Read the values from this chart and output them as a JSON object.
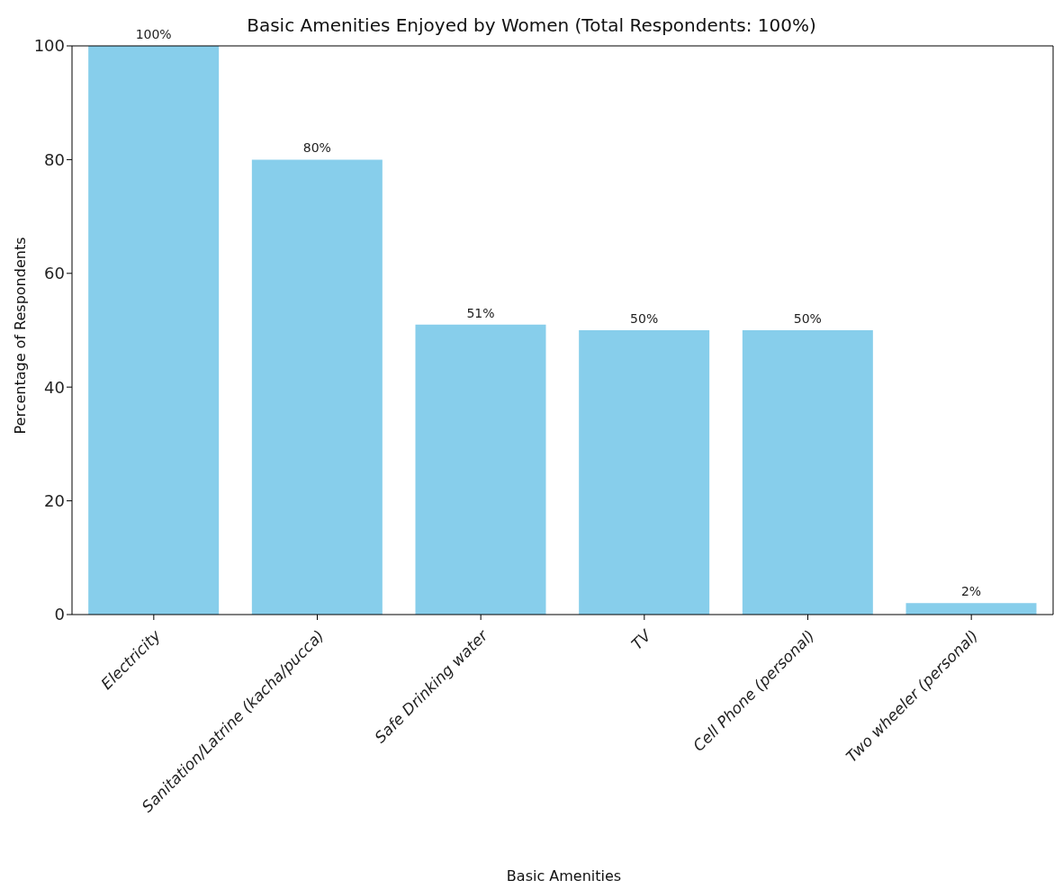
{
  "chart_data": {
    "type": "bar",
    "title": "Basic Amenities Enjoyed by Women (Total Respondents: 100%)",
    "xlabel": "Basic Amenities",
    "ylabel": "Percentage of Respondents",
    "categories": [
      "Electricity",
      "Sanitation/Latrine (kacha/pucca)",
      "Safe Drinking water",
      "TV",
      "Cell Phone (personal)",
      "Two wheeler (personal)"
    ],
    "values": [
      100,
      80,
      51,
      50,
      50,
      2
    ],
    "value_labels": [
      "100%",
      "80%",
      "51%",
      "50%",
      "50%",
      "2%"
    ],
    "color": "#87ceeb",
    "ylim": [
      0,
      100
    ],
    "yticks": [
      0,
      20,
      40,
      60,
      80,
      100
    ],
    "grid": false
  }
}
